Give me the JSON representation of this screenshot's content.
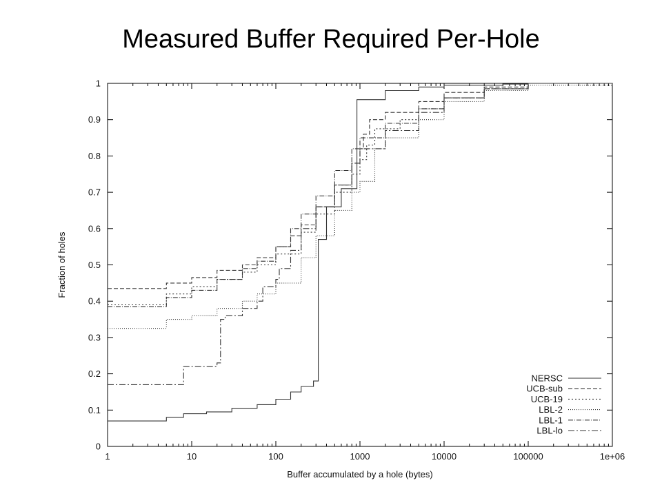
{
  "title": "Measured Buffer Required Per-Hole",
  "chart_data": {
    "type": "line",
    "xlabel": "Buffer accumulated by a hole (bytes)",
    "ylabel": "Fraction of holes",
    "xscale": "log",
    "xlim": [
      1,
      1000000
    ],
    "ylim": [
      0,
      1
    ],
    "x_tick_labels": [
      "1",
      "10",
      "100",
      "1000",
      "10000",
      "100000",
      "1e+06"
    ],
    "x_tick_values": [
      1,
      10,
      100,
      1000,
      10000,
      100000,
      1000000
    ],
    "y_tick_labels": [
      "0",
      "0.1",
      "0.2",
      "0.3",
      "0.4",
      "0.5",
      "0.6",
      "0.7",
      "0.8",
      "0.9",
      "1"
    ],
    "y_tick_values": [
      0,
      0.1,
      0.2,
      0.3,
      0.4,
      0.5,
      0.6,
      0.7,
      0.8,
      0.9,
      1
    ],
    "grid": false,
    "legend_position": "bottom-right",
    "series": [
      {
        "name": "NERSC",
        "dash": "",
        "x": [
          1,
          5,
          5,
          8,
          15,
          30,
          60,
          100,
          150,
          200,
          280,
          320,
          320,
          400,
          600,
          920,
          920,
          2000,
          5000,
          10000,
          50000,
          100000,
          1000000
        ],
        "y": [
          0.07,
          0.07,
          0.08,
          0.09,
          0.095,
          0.105,
          0.115,
          0.13,
          0.15,
          0.165,
          0.18,
          0.19,
          0.57,
          0.66,
          0.71,
          0.735,
          0.955,
          0.98,
          0.99,
          0.995,
          0.998,
          1.0,
          1.0
        ]
      },
      {
        "name": "UCB-sub",
        "dash": "6,3",
        "x": [
          1,
          5,
          5,
          10,
          20,
          40,
          60,
          100,
          150,
          200,
          300,
          500,
          800,
          1000,
          1100,
          1300,
          2000,
          5000,
          10000,
          30000,
          100000,
          1000000
        ],
        "y": [
          0.435,
          0.44,
          0.45,
          0.465,
          0.485,
          0.5,
          0.52,
          0.55,
          0.58,
          0.61,
          0.66,
          0.72,
          0.78,
          0.82,
          0.86,
          0.9,
          0.92,
          0.95,
          0.975,
          0.99,
          1.0,
          1.0
        ]
      },
      {
        "name": "UCB-19",
        "dash": "2,3",
        "x": [
          1,
          5,
          5,
          10,
          20,
          40,
          60,
          100,
          200,
          300,
          500,
          800,
          1000,
          1200,
          1500,
          3000,
          5000,
          10000,
          30000,
          100000,
          1000000
        ],
        "y": [
          0.39,
          0.39,
          0.42,
          0.44,
          0.46,
          0.48,
          0.5,
          0.53,
          0.59,
          0.64,
          0.7,
          0.75,
          0.79,
          0.83,
          0.875,
          0.9,
          0.93,
          0.96,
          0.985,
          1.0,
          1.0
        ]
      },
      {
        "name": "LBL-2",
        "dash": "1,2",
        "x": [
          1,
          5,
          5,
          10,
          20,
          40,
          60,
          100,
          200,
          300,
          500,
          800,
          1000,
          1500,
          1500,
          2000,
          5000,
          10000,
          30000,
          100000,
          1000000
        ],
        "y": [
          0.325,
          0.33,
          0.35,
          0.36,
          0.38,
          0.4,
          0.42,
          0.45,
          0.52,
          0.58,
          0.65,
          0.7,
          0.73,
          0.755,
          0.82,
          0.85,
          0.9,
          0.95,
          0.98,
          0.995,
          1.0
        ]
      },
      {
        "name": "LBL-1",
        "dash": "7,2,1,2",
        "x": [
          1,
          5,
          5,
          10,
          20,
          40,
          60,
          100,
          150,
          200,
          300,
          500,
          800,
          1000,
          2000,
          5000,
          10000,
          30000,
          100000,
          1000000
        ],
        "y": [
          0.385,
          0.39,
          0.41,
          0.43,
          0.46,
          0.49,
          0.51,
          0.55,
          0.6,
          0.64,
          0.69,
          0.76,
          0.82,
          0.85,
          0.89,
          0.93,
          0.96,
          0.985,
          1.0,
          1.0
        ]
      },
      {
        "name": "LBL-lo",
        "dash": "9,3,2,3",
        "x": [
          1,
          4,
          8,
          8,
          20,
          22,
          25,
          40,
          60,
          70,
          100,
          110,
          150,
          200,
          300,
          500,
          800,
          1000,
          2000,
          5000,
          10000,
          30000,
          100000,
          1000000
        ],
        "y": [
          0.17,
          0.17,
          0.185,
          0.22,
          0.23,
          0.35,
          0.36,
          0.38,
          0.4,
          0.44,
          0.46,
          0.49,
          0.54,
          0.6,
          0.66,
          0.72,
          0.78,
          0.82,
          0.87,
          0.92,
          0.96,
          0.985,
          1.0,
          1.0
        ]
      }
    ]
  }
}
